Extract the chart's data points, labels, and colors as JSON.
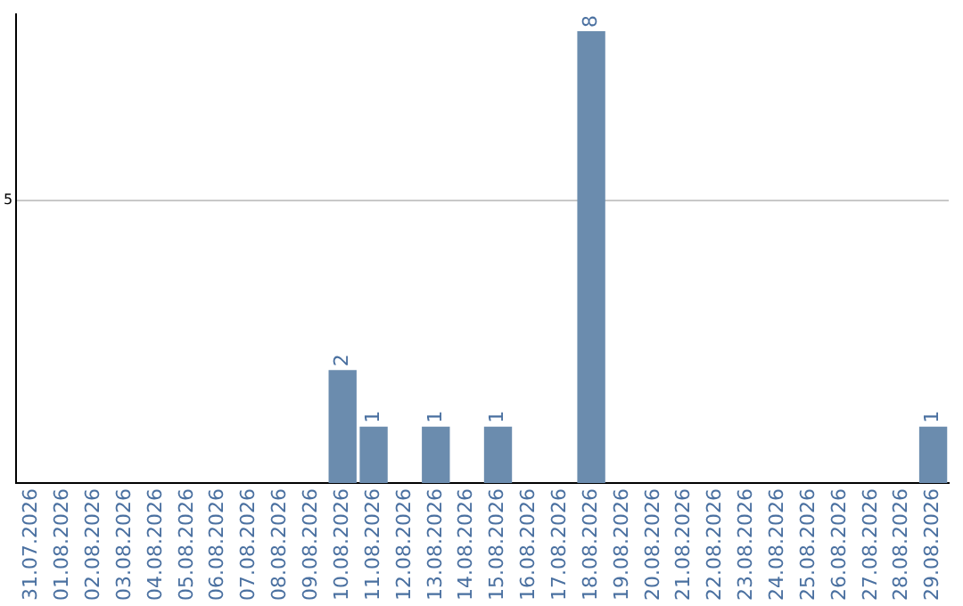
{
  "chart_data": {
    "type": "bar",
    "categories": [
      "31.07.2026",
      "01.08.2026",
      "02.08.2026",
      "03.08.2026",
      "04.08.2026",
      "05.08.2026",
      "06.08.2026",
      "07.08.2026",
      "08.08.2026",
      "09.08.2026",
      "10.08.2026",
      "11.08.2026",
      "12.08.2026",
      "13.08.2026",
      "14.08.2026",
      "15.08.2026",
      "16.08.2026",
      "17.08.2026",
      "18.08.2026",
      "19.08.2026",
      "20.08.2026",
      "21.08.2026",
      "22.08.2026",
      "23.08.2026",
      "24.08.2026",
      "25.08.2026",
      "26.08.2026",
      "27.08.2026",
      "28.08.2026",
      "29.08.2026"
    ],
    "values": [
      0,
      0,
      0,
      0,
      0,
      0,
      0,
      0,
      0,
      0,
      2,
      1,
      0,
      1,
      0,
      1,
      0,
      0,
      8,
      0,
      0,
      0,
      0,
      0,
      0,
      0,
      0,
      0,
      0,
      1
    ],
    "color": "#6b8cae",
    "value_labels": [
      null,
      null,
      null,
      null,
      null,
      null,
      null,
      null,
      null,
      null,
      "2",
      "1",
      null,
      "1",
      null,
      "1",
      null,
      null,
      "8",
      null,
      null,
      null,
      null,
      null,
      null,
      null,
      null,
      null,
      null,
      "1"
    ],
    "ylim": [
      0,
      8.3
    ],
    "yticks": [
      5
    ],
    "grid": "y",
    "legend": false
  }
}
